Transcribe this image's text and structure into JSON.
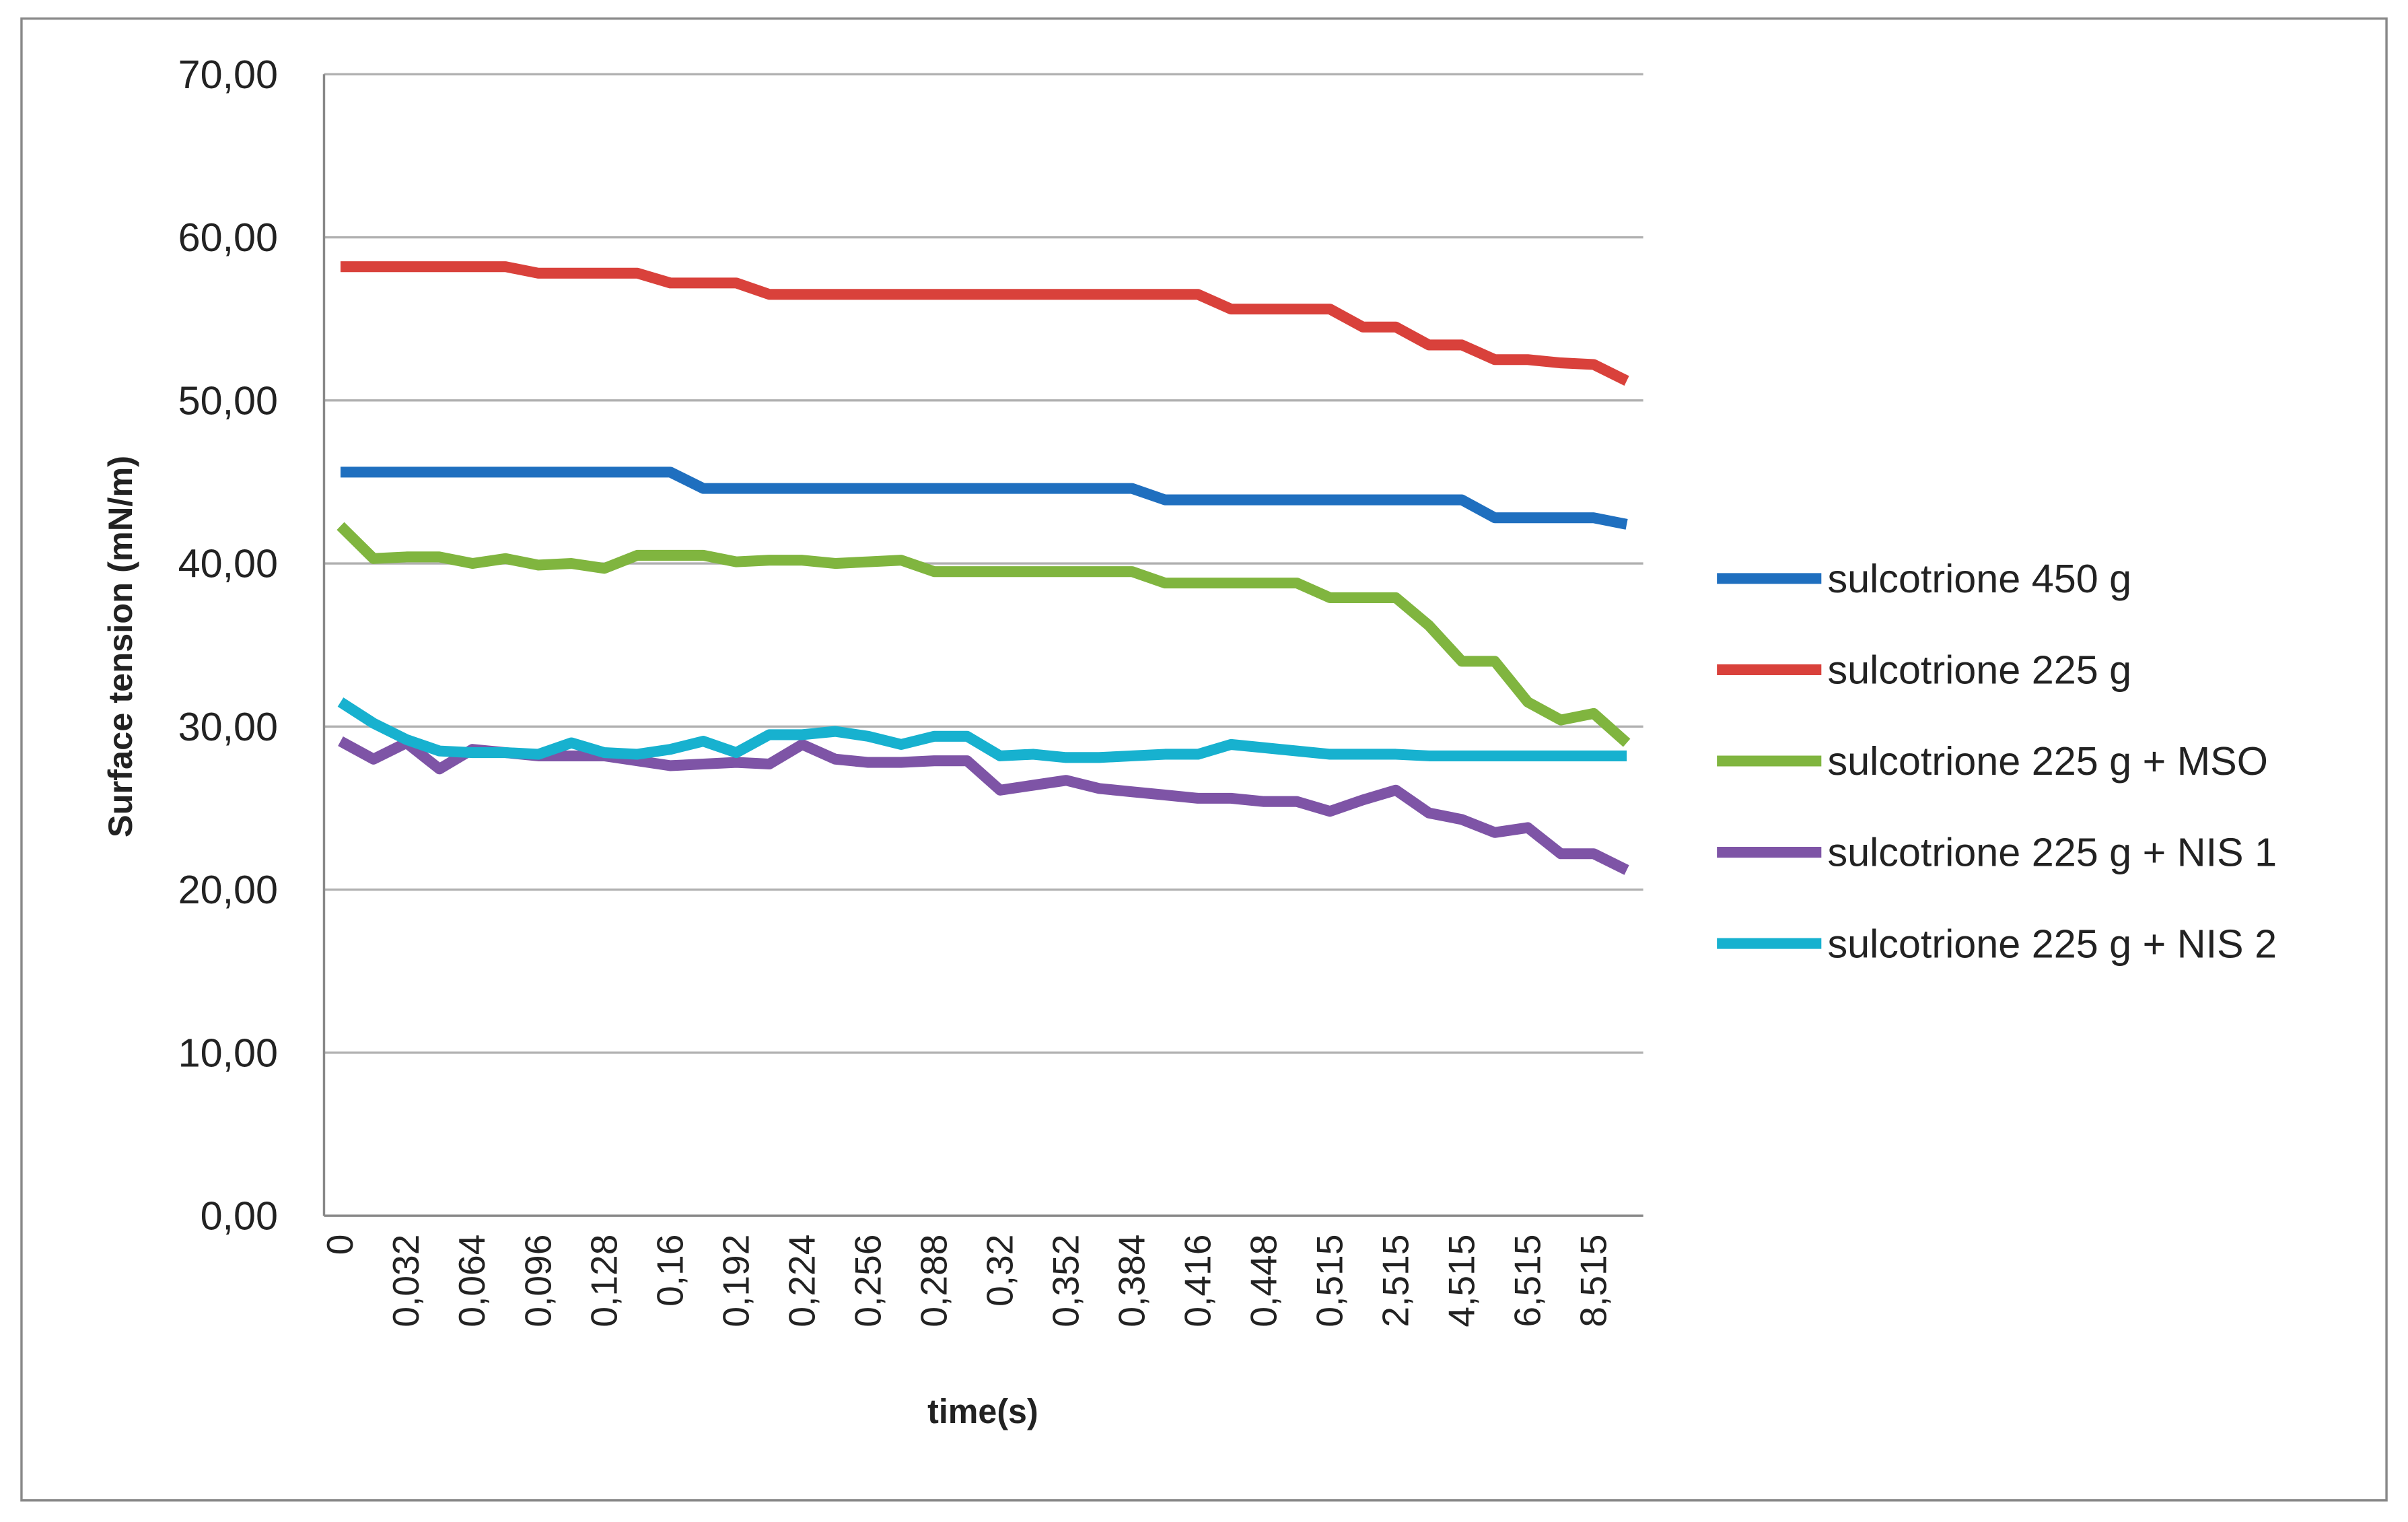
{
  "chart_data": {
    "type": "line",
    "x_label": "time(s)",
    "y_label": "Surface tension (mN/m)",
    "categories": [
      "0",
      null,
      "0,032",
      null,
      "0,064",
      null,
      "0,096",
      null,
      "0,128",
      null,
      "0,16",
      null,
      "0,192",
      null,
      "0,224",
      null,
      "0,256",
      null,
      "0,288",
      null,
      "0,32",
      null,
      "0,352",
      null,
      "0,384",
      null,
      "0,416",
      null,
      "0,448",
      null,
      "0,515",
      null,
      "2,515",
      null,
      "4,515",
      null,
      "6,515",
      null,
      "8,515",
      null
    ],
    "ylim": [
      0,
      70
    ],
    "yticks": [
      {
        "value": 0,
        "label": "0,00"
      },
      {
        "value": 10,
        "label": "10,00"
      },
      {
        "value": 20,
        "label": "20,00"
      },
      {
        "value": 30,
        "label": "30,00"
      },
      {
        "value": 40,
        "label": "40,00"
      },
      {
        "value": 50,
        "label": "50,00"
      },
      {
        "value": 60,
        "label": "60,00"
      },
      {
        "value": 70,
        "label": "70,00"
      }
    ],
    "grid": true,
    "legend": "right",
    "series": [
      {
        "name": "sulcotrione  450 g",
        "color": "#1f6fbf",
        "values": [
          45.6,
          45.6,
          45.6,
          45.6,
          45.6,
          45.6,
          45.6,
          45.6,
          45.6,
          45.6,
          45.6,
          44.6,
          44.6,
          44.6,
          44.6,
          44.6,
          44.6,
          44.6,
          44.6,
          44.6,
          44.6,
          44.6,
          44.6,
          44.6,
          44.6,
          43.9,
          43.9,
          43.9,
          43.9,
          43.9,
          43.9,
          43.9,
          43.9,
          43.9,
          43.9,
          42.8,
          42.8,
          42.8,
          42.8,
          42.4
        ]
      },
      {
        "name": "sulcotrione 225 g",
        "color": "#d9413b",
        "values": [
          58.2,
          58.2,
          58.2,
          58.2,
          58.2,
          58.2,
          57.8,
          57.8,
          57.8,
          57.8,
          57.2,
          57.2,
          57.2,
          56.5,
          56.5,
          56.5,
          56.5,
          56.5,
          56.5,
          56.5,
          56.5,
          56.5,
          56.5,
          56.5,
          56.5,
          56.5,
          56.5,
          55.6,
          55.6,
          55.6,
          55.6,
          54.5,
          54.5,
          53.4,
          53.4,
          52.5,
          52.5,
          52.3,
          52.2,
          51.2
        ]
      },
      {
        "name": "sulcotrione 225 g + MSO",
        "color": "#80b53f",
        "values": [
          42.3,
          40.3,
          40.4,
          40.4,
          40.0,
          40.3,
          39.9,
          40.0,
          39.7,
          40.5,
          40.5,
          40.5,
          40.1,
          40.2,
          40.2,
          40.0,
          40.1,
          40.2,
          39.5,
          39.5,
          39.5,
          39.5,
          39.5,
          39.5,
          39.5,
          38.8,
          38.8,
          38.8,
          38.8,
          38.8,
          37.9,
          37.9,
          37.9,
          36.2,
          34.0,
          34.0,
          31.5,
          30.4,
          30.8,
          29.0
        ]
      },
      {
        "name": "sulcotrione 225 g + NIS 1",
        "color": "#7e54a6",
        "values": [
          29.1,
          28.0,
          29.0,
          27.4,
          28.6,
          28.4,
          28.2,
          28.2,
          28.2,
          27.9,
          27.6,
          27.7,
          27.8,
          27.7,
          28.9,
          28.0,
          27.8,
          27.8,
          27.9,
          27.9,
          26.1,
          26.4,
          26.7,
          26.2,
          26.0,
          25.8,
          25.6,
          25.6,
          25.4,
          25.4,
          24.8,
          25.5,
          26.1,
          24.7,
          24.3,
          23.5,
          23.8,
          22.2,
          22.2,
          21.2
        ]
      },
      {
        "name": "sulcotrione 225 g + NIS 2",
        "color": "#17b1cf",
        "values": [
          31.5,
          30.2,
          29.2,
          28.5,
          28.4,
          28.4,
          28.3,
          29.0,
          28.4,
          28.3,
          28.6,
          29.1,
          28.4,
          29.5,
          29.5,
          29.7,
          29.4,
          28.9,
          29.4,
          29.4,
          28.2,
          28.3,
          28.1,
          28.1,
          28.2,
          28.3,
          28.3,
          28.9,
          28.7,
          28.5,
          28.3,
          28.3,
          28.3,
          28.2,
          28.2,
          28.2,
          28.2,
          28.2,
          28.2,
          28.2
        ]
      }
    ]
  }
}
